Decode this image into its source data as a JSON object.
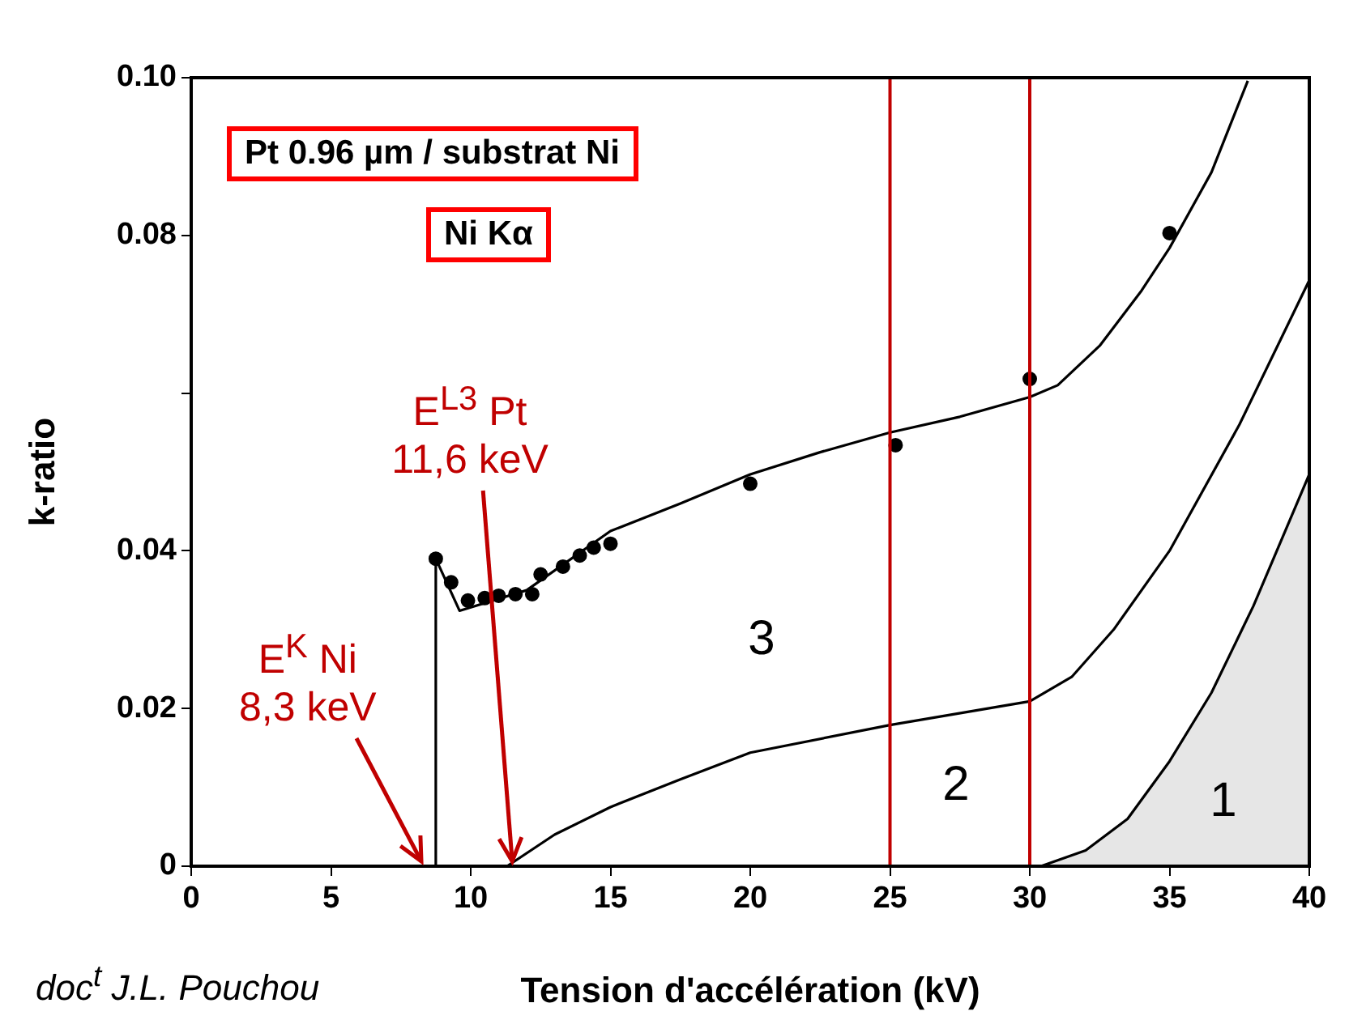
{
  "chart_data": {
    "type": "line",
    "xlabel": "Tension d'accélération (kV)",
    "ylabel": "k-ratio",
    "xlim": [
      0,
      40
    ],
    "xticks": [
      0,
      5,
      10,
      15,
      20,
      25,
      30,
      35,
      40
    ],
    "ylim": [
      0,
      0.1
    ],
    "yticks": [
      0,
      0.02,
      0.04,
      {
        "value": 0.06,
        "label": null
      },
      0.08,
      {
        "value": 0.1,
        "label": "0.10"
      }
    ],
    "grid": false,
    "legend": false,
    "series": [
      {
        "type": "line",
        "color": "#000000",
        "x": [
          8.75,
          8.75,
          9.6,
          12,
          15,
          17.5,
          20,
          22.5,
          25,
          27.5,
          30,
          31,
          32.5,
          34,
          35,
          36.5,
          37.8
        ],
        "values": [
          0,
          0.039,
          0.0324,
          0.035,
          0.0425,
          0.046,
          0.0497,
          0.0525,
          0.055,
          0.057,
          0.0595,
          0.061,
          0.066,
          0.073,
          0.0784,
          0.088,
          0.0996
        ]
      },
      {
        "type": "line",
        "color": "#000000",
        "x": [
          11.3,
          13,
          15,
          17.5,
          20,
          25,
          30,
          31.5,
          33,
          35,
          37.5,
          40
        ],
        "values": [
          0,
          0.004,
          0.0075,
          0.011,
          0.0144,
          0.0179,
          0.0209,
          0.024,
          0.03,
          0.04,
          0.056,
          0.0743
        ]
      },
      {
        "type": "area",
        "color": "#e6e6e6",
        "x": [
          30.4,
          32,
          33.5,
          35,
          36.5,
          38,
          40
        ],
        "values": [
          0,
          0.002,
          0.006,
          0.0133,
          0.022,
          0.033,
          0.0497
        ]
      },
      {
        "type": "scatter",
        "color": "#000000",
        "marker": "circle",
        "x": [
          8.75,
          9.3,
          9.9,
          10.5,
          11,
          11.6,
          12.2,
          12.5,
          13.3,
          13.9,
          14.4,
          15,
          20,
          25.2,
          30,
          35
        ],
        "values": [
          0.039,
          0.036,
          0.0337,
          0.034,
          0.0343,
          0.0345,
          0.0345,
          0.037,
          0.038,
          0.0394,
          0.0404,
          0.0409,
          0.0485,
          0.0534,
          0.0618,
          0.0803
        ]
      }
    ],
    "ref_lines": [
      {
        "axis": "x",
        "value": 25,
        "color": "#c00000"
      },
      {
        "axis": "x",
        "value": 30,
        "color": "#c00000"
      }
    ],
    "annotations": [
      "Pt 0.96 µm / substrat Ni",
      "Ni Kα",
      "doc$^{t}$ J.L. Pouchou",
      "3",
      "2",
      "1",
      "E$^{K}$ Ni\n8,3 keV",
      {
        "text": "E$^{L3}$ Pt\n11,6 keV",
        "x": 11.6,
        "y": 0
      }
    ]
  }
}
